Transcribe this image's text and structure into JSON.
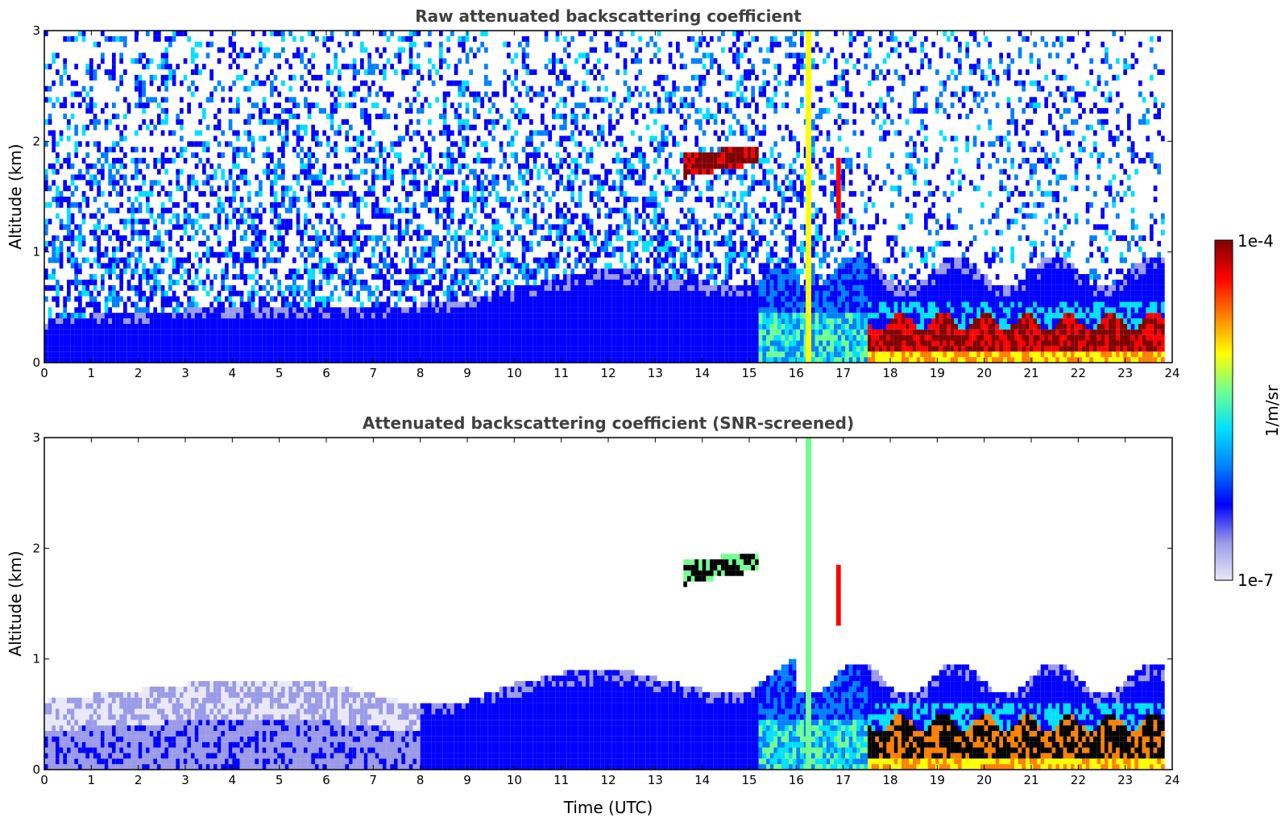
{
  "chart_data": [
    {
      "type": "heatmap",
      "title": "Raw attenuated backscattering coefficient",
      "xlabel": "",
      "ylabel": "Altitude (km)",
      "xlim": [
        0,
        24
      ],
      "ylim": [
        0,
        3
      ],
      "x_ticks": [
        "0",
        "1",
        "2",
        "3",
        "4",
        "5",
        "6",
        "7",
        "8",
        "9",
        "10",
        "11",
        "12",
        "13",
        "14",
        "15",
        "16",
        "17",
        "18",
        "19",
        "20",
        "21",
        "22",
        "23",
        "24"
      ],
      "y_ticks": [
        "0",
        "1",
        "2",
        "3"
      ],
      "features": [
        {
          "name": "boundary-layer",
          "t_start": 0,
          "t_end": 16,
          "alt_top": [
            0.35,
            0.4,
            0.4,
            0.45,
            0.45,
            0.45,
            0.45,
            0.45,
            0.5,
            0.55,
            0.65,
            0.75,
            0.85,
            0.75,
            0.7,
            0.7,
            0.9
          ],
          "intensity": "low"
        },
        {
          "name": "elevated-cloud",
          "t_start": 13.6,
          "t_end": 15.2,
          "alt_bottom": 1.65,
          "alt_top": 1.95,
          "intensity": "high"
        },
        {
          "name": "low-cloud-layer",
          "t_start": 17.5,
          "t_end": 23.8,
          "alt_bottom": 0.1,
          "alt_top": 0.35,
          "intensity": "high"
        }
      ]
    },
    {
      "type": "heatmap",
      "title": "Attenuated backscattering coefficient (SNR-screened)",
      "xlabel": "Time (UTC)",
      "ylabel": "Altitude (km)",
      "xlim": [
        0,
        24
      ],
      "ylim": [
        0,
        3
      ],
      "x_ticks": [
        "0",
        "1",
        "2",
        "3",
        "4",
        "5",
        "6",
        "7",
        "8",
        "9",
        "10",
        "11",
        "12",
        "13",
        "14",
        "15",
        "16",
        "17",
        "18",
        "19",
        "20",
        "21",
        "22",
        "23",
        "24"
      ],
      "y_ticks": [
        "0",
        "1",
        "2",
        "3"
      ],
      "features": [
        {
          "name": "boundary-layer",
          "t_start": 0,
          "t_end": 16,
          "alt_top": [
            0.6,
            0.65,
            0.7,
            0.75,
            0.8,
            0.8,
            0.75,
            0.65,
            0.55,
            0.6,
            0.75,
            0.85,
            0.9,
            0.8,
            0.7,
            0.7,
            1.0
          ],
          "intensity": "low"
        },
        {
          "name": "elevated-cloud",
          "t_start": 13.6,
          "t_end": 15.2,
          "alt_bottom": 1.65,
          "alt_top": 1.95,
          "intensity": "saturated"
        },
        {
          "name": "low-cloud-layer",
          "t_start": 17.5,
          "t_end": 23.8,
          "alt_bottom": 0.1,
          "alt_top": 0.4,
          "intensity": "saturated"
        }
      ]
    }
  ],
  "colorbar": {
    "label": "1/m/sr",
    "max_label": "1e-4",
    "min_label": "1e-7",
    "colors": [
      "#e8e8f8",
      "#9a9ae8",
      "#0000ff",
      "#0080ff",
      "#00e0ff",
      "#70ff90",
      "#ffff00",
      "#ff8000",
      "#ff0000",
      "#800000"
    ]
  }
}
